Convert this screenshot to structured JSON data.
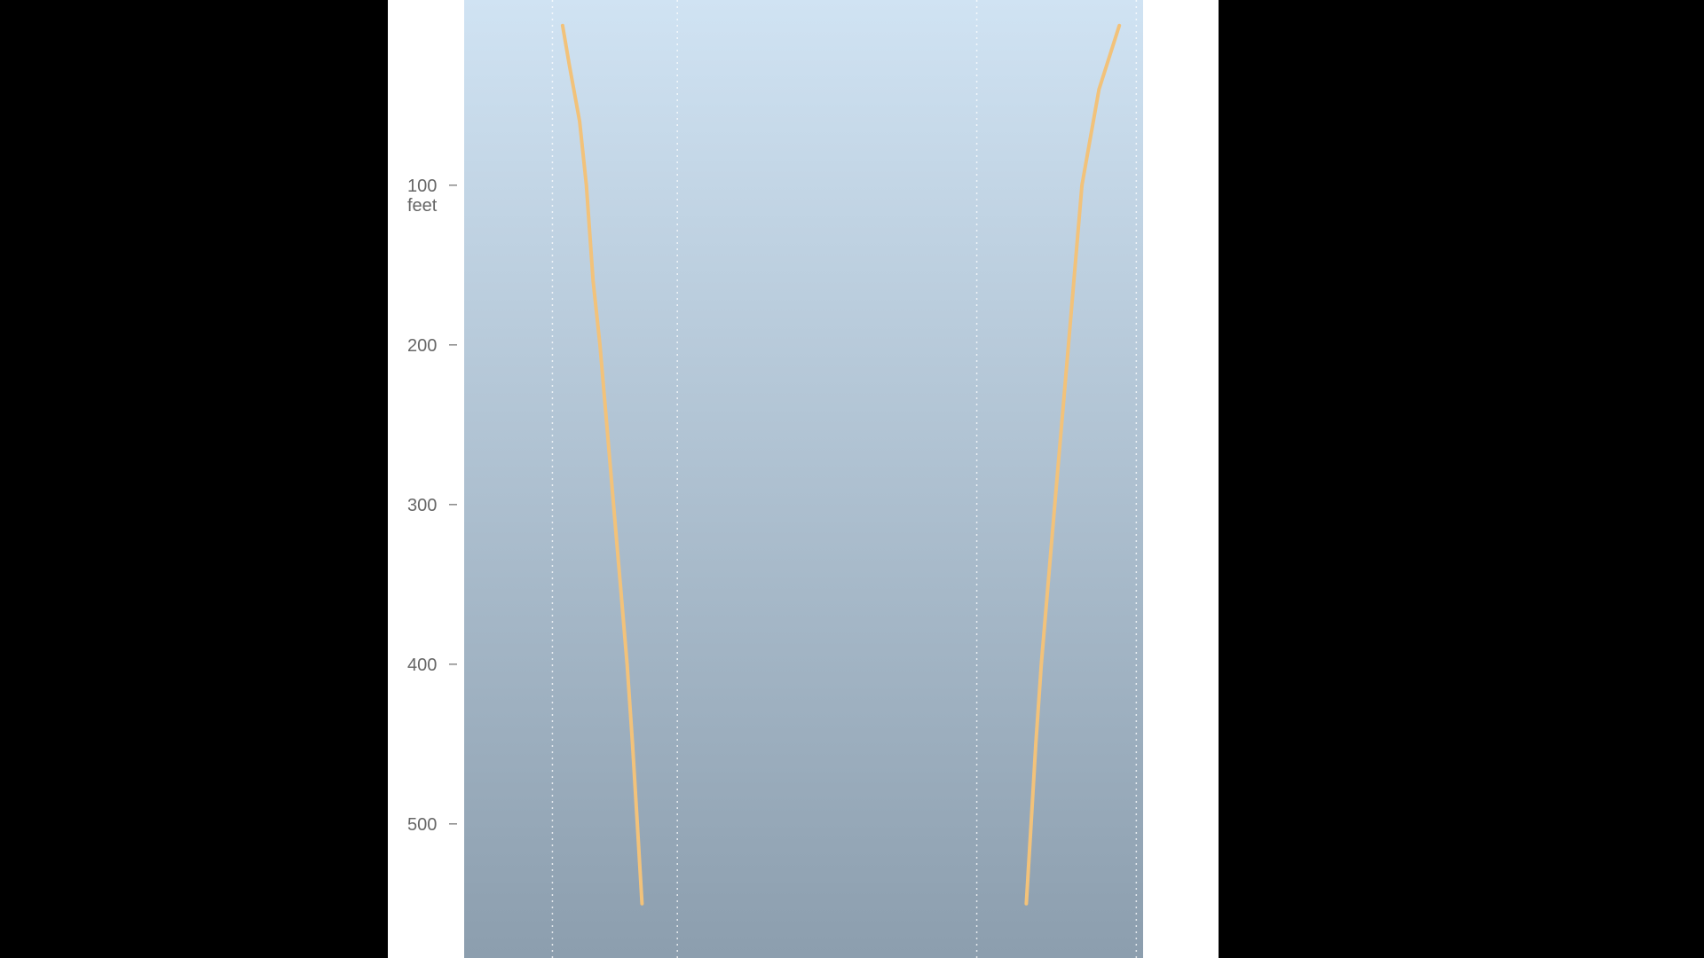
{
  "chart_data": {
    "type": "line",
    "title": "",
    "xlabel": "",
    "ylabel": "",
    "y_unit": "feet",
    "y_axis": "depth",
    "y_inverted": true,
    "ylim": [
      -16,
      584
    ],
    "yticks": [
      100,
      200,
      300,
      400,
      500
    ],
    "xlim": [
      0,
      100
    ],
    "vertical_gridlines_x": [
      13,
      31.4,
      75.5,
      99
    ],
    "grid": "dotted vertical",
    "legend": "none",
    "background_gradient": [
      "#d0e3f3",
      "#8c9eae"
    ],
    "series": [
      {
        "points": [
          [
            14.5,
            0
          ],
          [
            15.5,
            25
          ],
          [
            17.0,
            60
          ],
          [
            18.0,
            100
          ],
          [
            19.0,
            160
          ],
          [
            20.0,
            200
          ],
          [
            21.0,
            250
          ],
          [
            22.0,
            300
          ],
          [
            23.0,
            350
          ],
          [
            24.0,
            400
          ],
          [
            24.8,
            450
          ],
          [
            25.5,
            500
          ],
          [
            26.2,
            550
          ]
        ],
        "color": "#f2c27a"
      },
      {
        "points": [
          [
            96.5,
            0
          ],
          [
            93.5,
            40
          ],
          [
            91.0,
            100
          ],
          [
            90.0,
            150
          ],
          [
            89.0,
            200
          ],
          [
            88.0,
            250
          ],
          [
            87.0,
            300
          ],
          [
            86.0,
            350
          ],
          [
            85.0,
            400
          ],
          [
            84.2,
            450
          ],
          [
            83.5,
            500
          ],
          [
            82.8,
            550
          ]
        ],
        "color": "#f2c27a"
      }
    ],
    "line_color": "#f2c27a",
    "gridline_color": "#ffffff"
  }
}
